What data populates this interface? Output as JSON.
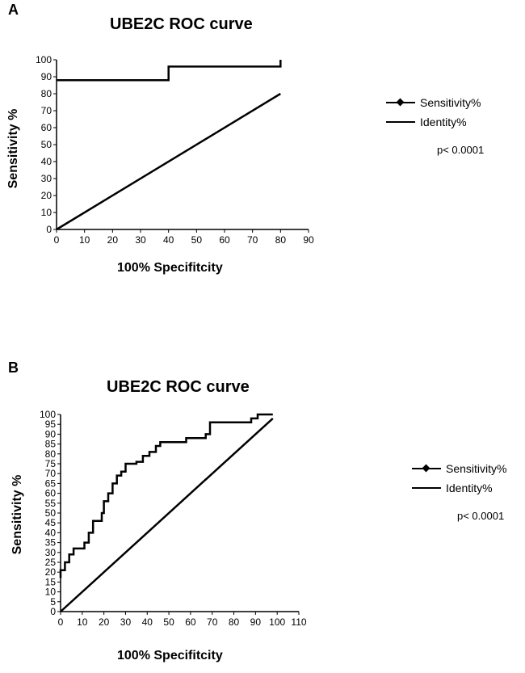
{
  "chart_data": [
    {
      "panel": "A",
      "type": "line",
      "title": "UBE2C ROC curve",
      "xlabel": "100% Specifitcity",
      "ylabel": "Sensitivity %",
      "xlim": [
        0,
        90
      ],
      "ylim": [
        0,
        100
      ],
      "x_ticks": [
        0,
        10,
        20,
        30,
        40,
        50,
        60,
        70,
        80,
        90
      ],
      "y_ticks": [
        0,
        10,
        20,
        30,
        40,
        50,
        60,
        70,
        80,
        90,
        100
      ],
      "legend": [
        "Sensitivity%",
        "Identity%"
      ],
      "annotation": "p< 0.0001",
      "series": [
        {
          "name": "Sensitivity%",
          "x": [
            0,
            40,
            40,
            80,
            80
          ],
          "y": [
            88,
            88,
            96,
            96,
            100
          ]
        },
        {
          "name": "Identity%",
          "x": [
            0,
            80
          ],
          "y": [
            0,
            80
          ]
        }
      ]
    },
    {
      "panel": "B",
      "type": "line",
      "title": "UBE2C ROC curve",
      "xlabel": "100% Specifitcity",
      "ylabel": "Sensitivity %",
      "xlim": [
        0,
        110
      ],
      "ylim": [
        0,
        100
      ],
      "x_ticks": [
        0,
        10,
        20,
        30,
        40,
        50,
        60,
        70,
        80,
        90,
        100,
        110
      ],
      "y_ticks": [
        0,
        5,
        10,
        15,
        20,
        25,
        30,
        35,
        40,
        45,
        50,
        55,
        60,
        65,
        70,
        75,
        80,
        85,
        90,
        95,
        100
      ],
      "legend": [
        "Sensitivity%",
        "Identity%"
      ],
      "annotation": "p< 0.0001",
      "series": [
        {
          "name": "Sensitivity%",
          "x": [
            0,
            0,
            2,
            2,
            4,
            4,
            6,
            6,
            11,
            11,
            13,
            13,
            15,
            15,
            19,
            19,
            20,
            20,
            22,
            22,
            24,
            24,
            26,
            26,
            28,
            28,
            30,
            30,
            35,
            35,
            38,
            38,
            41,
            41,
            44,
            44,
            46,
            46,
            58,
            58,
            67,
            67,
            69,
            69,
            88,
            88,
            91,
            91,
            98,
            98
          ],
          "y": [
            17,
            21,
            21,
            25,
            25,
            29,
            29,
            32,
            32,
            35,
            35,
            40,
            40,
            46,
            46,
            50,
            50,
            56,
            56,
            60,
            60,
            65,
            65,
            69,
            69,
            71,
            71,
            75,
            75,
            76,
            76,
            79,
            79,
            81,
            81,
            84,
            84,
            86,
            86,
            88,
            88,
            90,
            90,
            96,
            96,
            98,
            98,
            100,
            100,
            100
          ]
        },
        {
          "name": "Identity%",
          "x": [
            0,
            98
          ],
          "y": [
            0,
            98
          ]
        }
      ]
    }
  ]
}
